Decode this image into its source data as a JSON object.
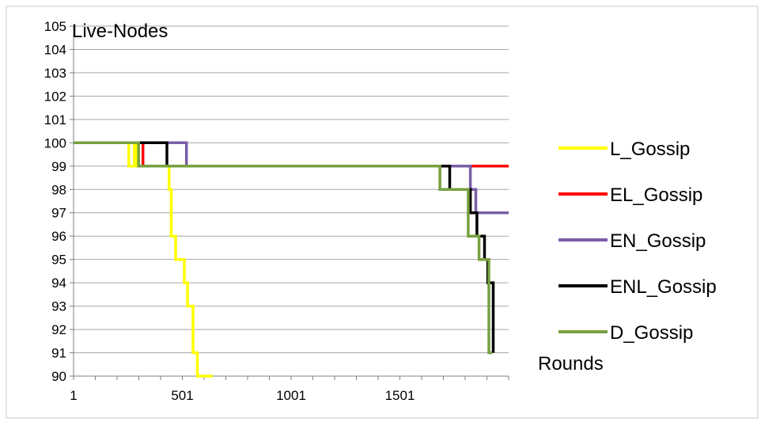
{
  "chart_data": {
    "type": "line",
    "title": "",
    "ylabel": "Live-Nodes",
    "xlabel": "Rounds",
    "ylim": [
      90,
      105
    ],
    "xlim": [
      1,
      2001
    ],
    "y_ticks": [
      "90",
      "91",
      "92",
      "93",
      "94",
      "95",
      "96",
      "97",
      "98",
      "99",
      "100",
      "101",
      "102",
      "103",
      "104",
      "105"
    ],
    "x_ticks": [
      "1",
      "501",
      "1001",
      "1501"
    ],
    "grid": "horizontal",
    "legend_position": "right",
    "series": [
      {
        "name": "L_Gossip",
        "color": "#ffff00",
        "points": [
          [
            1,
            100
          ],
          [
            255,
            100
          ],
          [
            255,
            99
          ],
          [
            280,
            99
          ],
          [
            280,
            100
          ],
          [
            290,
            100
          ],
          [
            290,
            99
          ],
          [
            440,
            99
          ],
          [
            440,
            98
          ],
          [
            450,
            98
          ],
          [
            450,
            96
          ],
          [
            470,
            96
          ],
          [
            470,
            95
          ],
          [
            510,
            95
          ],
          [
            510,
            94
          ],
          [
            525,
            94
          ],
          [
            525,
            93
          ],
          [
            550,
            93
          ],
          [
            550,
            91
          ],
          [
            570,
            91
          ],
          [
            570,
            90
          ],
          [
            640,
            90
          ]
        ]
      },
      {
        "name": "EL_Gossip",
        "color": "#ff0000",
        "points": [
          [
            1,
            100
          ],
          [
            320,
            100
          ],
          [
            320,
            99
          ],
          [
            2001,
            99
          ]
        ]
      },
      {
        "name": "EN_Gossip",
        "color": "#7a5ea8",
        "points": [
          [
            1,
            100
          ],
          [
            520,
            100
          ],
          [
            520,
            99
          ],
          [
            1825,
            99
          ],
          [
            1825,
            98
          ],
          [
            1850,
            98
          ],
          [
            1850,
            97
          ],
          [
            2001,
            97
          ]
        ]
      },
      {
        "name": "ENL_Gossip",
        "color": "#000000",
        "points": [
          [
            1,
            100
          ],
          [
            430,
            100
          ],
          [
            430,
            99
          ],
          [
            1730,
            99
          ],
          [
            1730,
            98
          ],
          [
            1825,
            98
          ],
          [
            1825,
            97
          ],
          [
            1855,
            97
          ],
          [
            1855,
            96
          ],
          [
            1890,
            96
          ],
          [
            1890,
            95
          ],
          [
            1905,
            95
          ],
          [
            1905,
            94
          ],
          [
            1930,
            94
          ],
          [
            1930,
            91
          ]
        ]
      },
      {
        "name": "D_Gossip",
        "color": "#77a040",
        "points": [
          [
            1,
            100
          ],
          [
            300,
            100
          ],
          [
            300,
            99
          ],
          [
            1685,
            99
          ],
          [
            1685,
            98
          ],
          [
            1815,
            98
          ],
          [
            1815,
            96
          ],
          [
            1865,
            96
          ],
          [
            1865,
            95
          ],
          [
            1910,
            95
          ],
          [
            1910,
            91
          ],
          [
            1925,
            91
          ]
        ]
      }
    ]
  }
}
